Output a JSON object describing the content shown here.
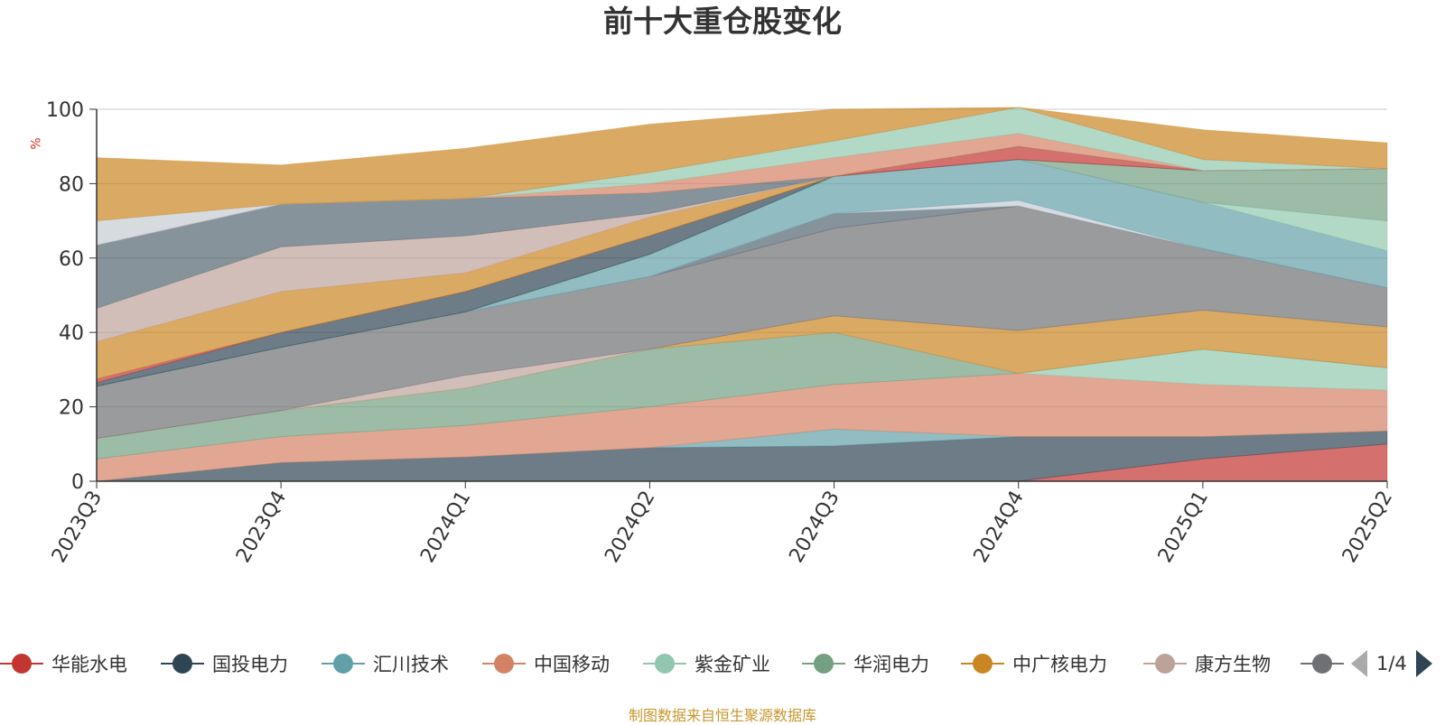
{
  "title": "前十大重仓股变化",
  "source_note": "制图数据来自恒生聚源数据库",
  "pager": {
    "text": "1/4"
  },
  "chart_data": {
    "type": "area",
    "title": "前十大重仓股变化",
    "ylabel": "%",
    "ylim": [
      0,
      100
    ],
    "yticks": [
      0,
      20,
      40,
      60,
      80,
      100
    ],
    "grid": true,
    "legend_position": "bottom",
    "categories": [
      "2023Q3",
      "2023Q4",
      "2024Q1",
      "2024Q2",
      "2024Q3",
      "2024Q4",
      "2025Q1",
      "2025Q2"
    ],
    "series": [
      {
        "name": "华能水电",
        "color": "#c23531",
        "values": [
          0,
          0,
          0,
          0,
          0,
          0,
          6,
          10
        ]
      },
      {
        "name": "国投电力",
        "color": "#2f4554",
        "values": [
          0,
          5,
          6.5,
          9,
          9.5,
          12,
          6,
          3.5
        ]
      },
      {
        "name": "汇川技术",
        "color": "#61a0a8",
        "values": [
          0,
          0,
          0,
          0,
          4.5,
          0,
          0,
          0
        ]
      },
      {
        "name": "中国移动",
        "color": "#d48265",
        "values": [
          6,
          7,
          8.5,
          11,
          12,
          17,
          14,
          11
        ]
      },
      {
        "name": "紫金矿业",
        "color": "#91c7ae",
        "values": [
          0,
          0,
          0,
          0,
          0,
          0,
          9.5,
          6
        ]
      },
      {
        "name": "华润电力",
        "color": "#749f83",
        "values": [
          5.5,
          7,
          10,
          15.5,
          14,
          0,
          0,
          0
        ]
      },
      {
        "name": "中广核电力",
        "color": "#ca8622",
        "values": [
          0,
          0,
          0,
          0,
          4.5,
          11.5,
          10.5,
          11
        ]
      },
      {
        "name": "康方生物",
        "color": "#bda29a",
        "values": [
          0,
          0,
          3.5,
          0,
          0,
          0,
          0,
          0
        ]
      },
      {
        "name": "",
        "color": "#6e7074",
        "values": [
          14,
          17,
          17,
          19.5,
          23.5,
          33.5,
          16.5,
          10.5
        ]
      },
      {
        "name": "",
        "color": "#546570",
        "values": [
          0,
          0,
          0,
          0,
          4,
          0,
          0,
          0
        ]
      },
      {
        "name": "",
        "color": "#c4ccd3",
        "values": [
          0,
          0,
          0,
          0,
          0,
          1.5,
          0,
          0
        ]
      },
      {
        "name": "",
        "color": "#61a0a8",
        "values": [
          0,
          0,
          0,
          6,
          10,
          11,
          12.5,
          10
        ]
      },
      {
        "name": "",
        "color": "#91c7ae",
        "values": [
          0,
          0,
          0,
          0,
          0,
          0,
          0,
          8
        ]
      },
      {
        "name": "",
        "color": "#749f83",
        "values": [
          0,
          0,
          0,
          0,
          0,
          0,
          8.5,
          14
        ]
      },
      {
        "name": "",
        "color": "#2f4554",
        "values": [
          1,
          4,
          5.5,
          5,
          0,
          0,
          0,
          0
        ]
      },
      {
        "name": "",
        "color": "#c23531",
        "values": [
          1,
          0,
          0,
          0,
          0,
          3.5,
          0,
          0
        ]
      },
      {
        "name": "",
        "color": "#ca8622",
        "values": [
          10,
          11,
          5,
          5,
          0,
          0,
          0,
          0
        ]
      },
      {
        "name": "",
        "color": "#bda29a",
        "values": [
          9,
          12,
          10,
          1,
          0,
          0,
          0,
          0
        ]
      },
      {
        "name": "",
        "color": "#546570",
        "values": [
          17,
          11.5,
          10,
          5.5,
          0,
          0,
          0,
          0
        ]
      },
      {
        "name": "",
        "color": "#d48265",
        "values": [
          0,
          0,
          0,
          2.5,
          5,
          3.5,
          0,
          0
        ]
      },
      {
        "name": "",
        "color": "#91c7ae",
        "values": [
          0,
          0,
          0,
          3,
          4.5,
          7,
          3,
          0
        ]
      },
      {
        "name": "",
        "color": "#c4ccd3",
        "values": [
          6.5,
          0,
          0,
          0,
          0,
          0,
          0,
          0
        ]
      },
      {
        "name": "",
        "color": "#ca8622",
        "values": [
          17,
          10.5,
          13.5,
          13,
          8.5,
          0,
          8,
          7
        ]
      }
    ]
  }
}
